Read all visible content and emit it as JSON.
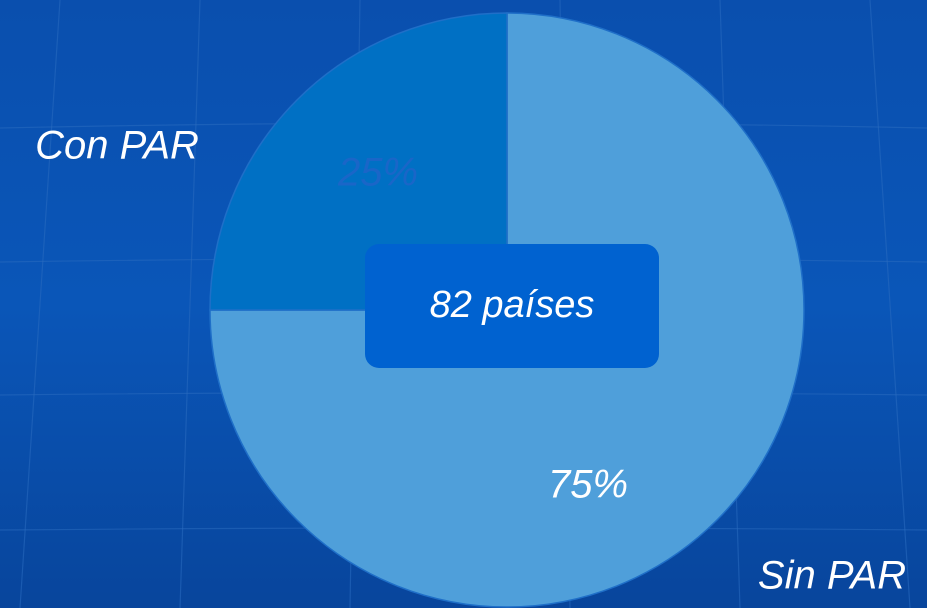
{
  "chart_data": {
    "type": "pie",
    "categories": [
      "Sin PAR",
      "Con PAR"
    ],
    "values": [
      75,
      25
    ],
    "value_labels": [
      "75%",
      "25%"
    ],
    "colors": [
      "#4f9fda",
      "#0070c4"
    ],
    "label_colors": [
      "#ffffff",
      "#1a66c8"
    ],
    "annotation": "82 países"
  }
}
